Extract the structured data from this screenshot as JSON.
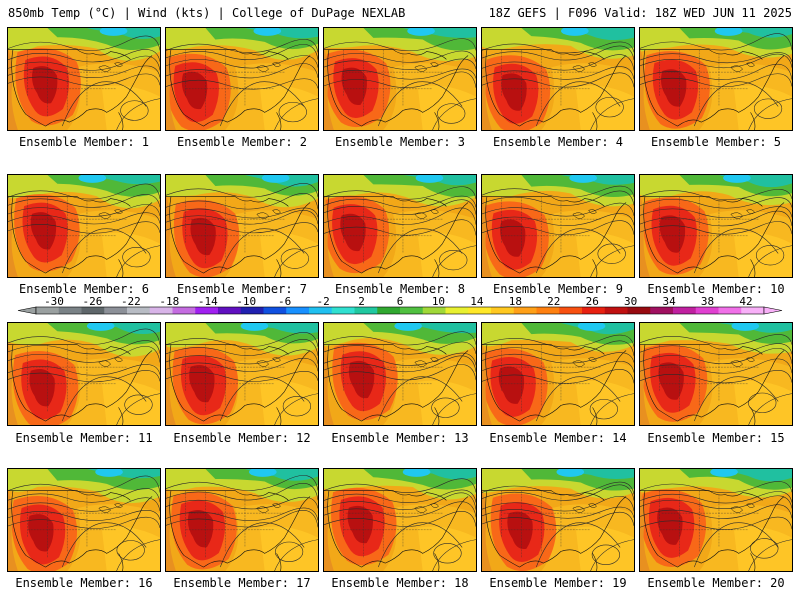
{
  "header": {
    "left": "850mb Temp (°C) | Wind (kts) | College of DuPage NEXLAB",
    "right": "18Z GEFS | F096 Valid: 18Z WED JUN 11 2025"
  },
  "panels": [
    {
      "label": "Ensemble Member: 1"
    },
    {
      "label": "Ensemble Member: 2"
    },
    {
      "label": "Ensemble Member: 3"
    },
    {
      "label": "Ensemble Member: 4"
    },
    {
      "label": "Ensemble Member: 5"
    },
    {
      "label": "Ensemble Member: 6"
    },
    {
      "label": "Ensemble Member: 7"
    },
    {
      "label": "Ensemble Member: 8"
    },
    {
      "label": "Ensemble Member: 9"
    },
    {
      "label": "Ensemble Member: 10"
    },
    {
      "label": "Ensemble Member: 11"
    },
    {
      "label": "Ensemble Member: 12"
    },
    {
      "label": "Ensemble Member: 13"
    },
    {
      "label": "Ensemble Member: 14"
    },
    {
      "label": "Ensemble Member: 15"
    },
    {
      "label": "Ensemble Member: 16"
    },
    {
      "label": "Ensemble Member: 17"
    },
    {
      "label": "Ensemble Member: 18"
    },
    {
      "label": "Ensemble Member: 19"
    },
    {
      "label": "Ensemble Member: 20"
    }
  ],
  "colorbar": {
    "ticks": [
      "-30",
      "-26",
      "-22",
      "-18",
      "-14",
      "-10",
      "-6",
      "-2",
      "2",
      "6",
      "10",
      "14",
      "18",
      "22",
      "26",
      "30",
      "34",
      "38",
      "42"
    ],
    "colors": [
      "#9aa0a0",
      "#7a8286",
      "#5e666a",
      "#8c9098",
      "#b8bcc4",
      "#d8b4e8",
      "#c46ce0",
      "#a020f0",
      "#6010c0",
      "#2020b0",
      "#1050e0",
      "#1890ff",
      "#20c0f0",
      "#30e0d0",
      "#20c8a0",
      "#30a830",
      "#50c040",
      "#a0d838",
      "#e8f030",
      "#ffe828",
      "#ffc820",
      "#ffa018",
      "#ff8010",
      "#f85010",
      "#e82010",
      "#c01010",
      "#980a10",
      "#a01060",
      "#c020a0",
      "#e040d0",
      "#f070e8",
      "#f8b0f8"
    ]
  }
}
